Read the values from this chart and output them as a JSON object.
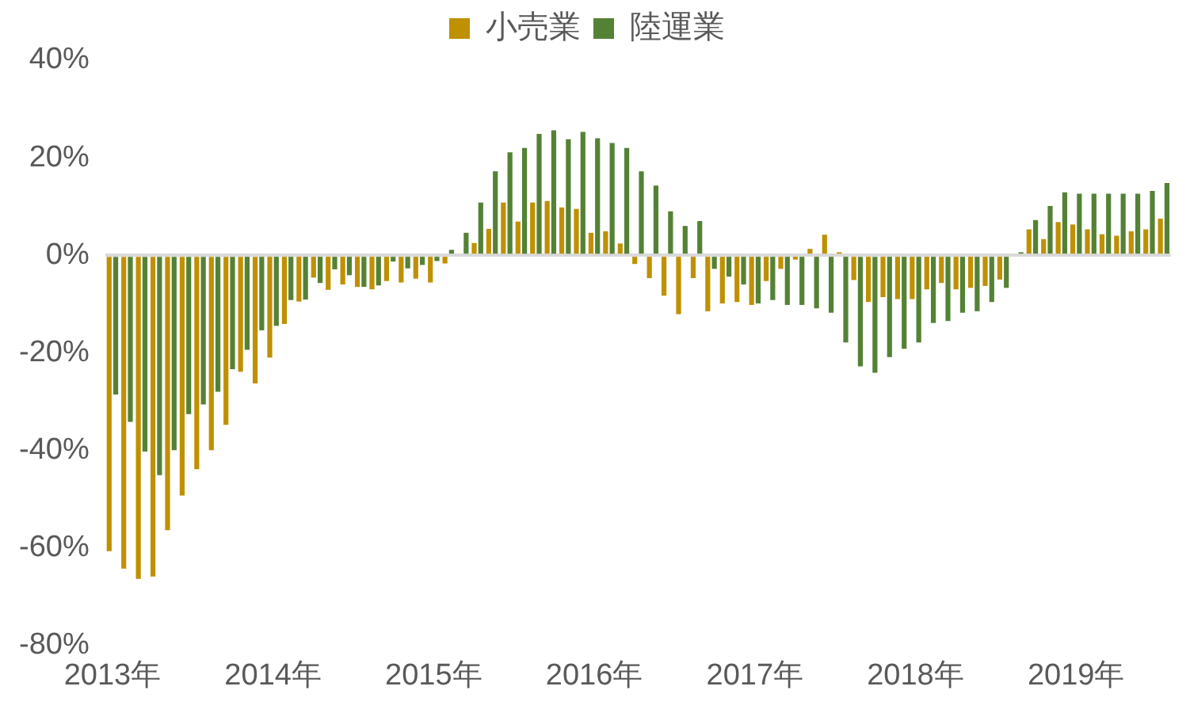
{
  "chart_data": {
    "type": "bar",
    "categories": [
      "2013年",
      null,
      null,
      null,
      null,
      null,
      null,
      null,
      null,
      null,
      null,
      "2014年",
      null,
      null,
      null,
      null,
      null,
      null,
      null,
      null,
      null,
      null,
      "2015年",
      null,
      null,
      null,
      null,
      null,
      null,
      null,
      null,
      null,
      null,
      "2016年",
      null,
      null,
      null,
      null,
      null,
      null,
      null,
      null,
      null,
      null,
      "2017年",
      null,
      null,
      null,
      null,
      null,
      null,
      null,
      null,
      null,
      null,
      "2018年",
      null,
      null,
      null,
      null,
      null,
      null,
      null,
      null,
      null,
      null,
      "2019年",
      null,
      null,
      null,
      null,
      null,
      null
    ],
    "series": [
      {
        "name": "小売業",
        "color": "#bf9000",
        "values": [
          -60.7,
          -64.3,
          -66.4,
          -65.9,
          -56.4,
          -49.3,
          -43.9,
          -40,
          -34.8,
          -23.9,
          -26.3,
          -21,
          -14.1,
          -9.5,
          -4.6,
          -7.1,
          -6,
          -6.5,
          -7,
          -5.3,
          -5.6,
          -4.8,
          -5.6,
          -1.7,
          0,
          2.5,
          5.4,
          10.8,
          6.9,
          10.8,
          11.1,
          9.8,
          9.5,
          4.6,
          4.9,
          2.4,
          -1.8,
          -4.7,
          -8.3,
          -12.1,
          -4.7,
          -11.5,
          -9.9,
          -9.6,
          -10.2,
          -5.3,
          -2.8,
          -0.9,
          1.3,
          4.2,
          0.6,
          -5.1,
          -9.6,
          -8.6,
          -9,
          -9,
          -7,
          -5.7,
          -7,
          -6.7,
          -6.3,
          -5,
          0,
          5.3,
          3.3,
          6.8,
          6.3,
          5.3,
          4.3,
          4,
          4.9,
          5.3,
          7.5
        ]
      },
      {
        "name": "陸運業",
        "color": "#548235",
        "values": [
          -28.6,
          -34.2,
          -40.3,
          -45.1,
          -40,
          -32.6,
          -30.6,
          -28,
          -23.4,
          -19.4,
          -15.4,
          -14.5,
          -9.2,
          -9.1,
          -5.7,
          -2.9,
          -4.1,
          -6.5,
          -6.2,
          -1.3,
          -2.7,
          -2,
          -1.2,
          1.1,
          4.6,
          10.8,
          17.2,
          21.1,
          22,
          24.9,
          25.6,
          23.8,
          25.3,
          24,
          23,
          22,
          17.2,
          14.3,
          9,
          6,
          7,
          -2.8,
          -4.4,
          -6,
          -9.9,
          -9.2,
          -10.2,
          -10.2,
          -10.9,
          -11.8,
          -17.9,
          -22.8,
          -24.1,
          -20.9,
          -19.2,
          -17.9,
          -13.9,
          -13.5,
          -11.8,
          -11.5,
          -9.6,
          -6.7,
          0.6,
          7.2,
          10.1,
          12.9,
          12.6,
          12.6,
          12.6,
          12.6,
          12.6,
          13.2,
          14.8
        ]
      }
    ],
    "ylim": [
      -80,
      40
    ],
    "yticks": [
      {
        "value": -80,
        "label": "-80%"
      },
      {
        "value": -60,
        "label": "-60%"
      },
      {
        "value": -40,
        "label": "-40%"
      },
      {
        "value": -20,
        "label": "-20%"
      },
      {
        "value": 0,
        "label": "0%"
      },
      {
        "value": 20,
        "label": "20%"
      },
      {
        "value": 40,
        "label": "40%"
      }
    ],
    "legend": "top"
  }
}
